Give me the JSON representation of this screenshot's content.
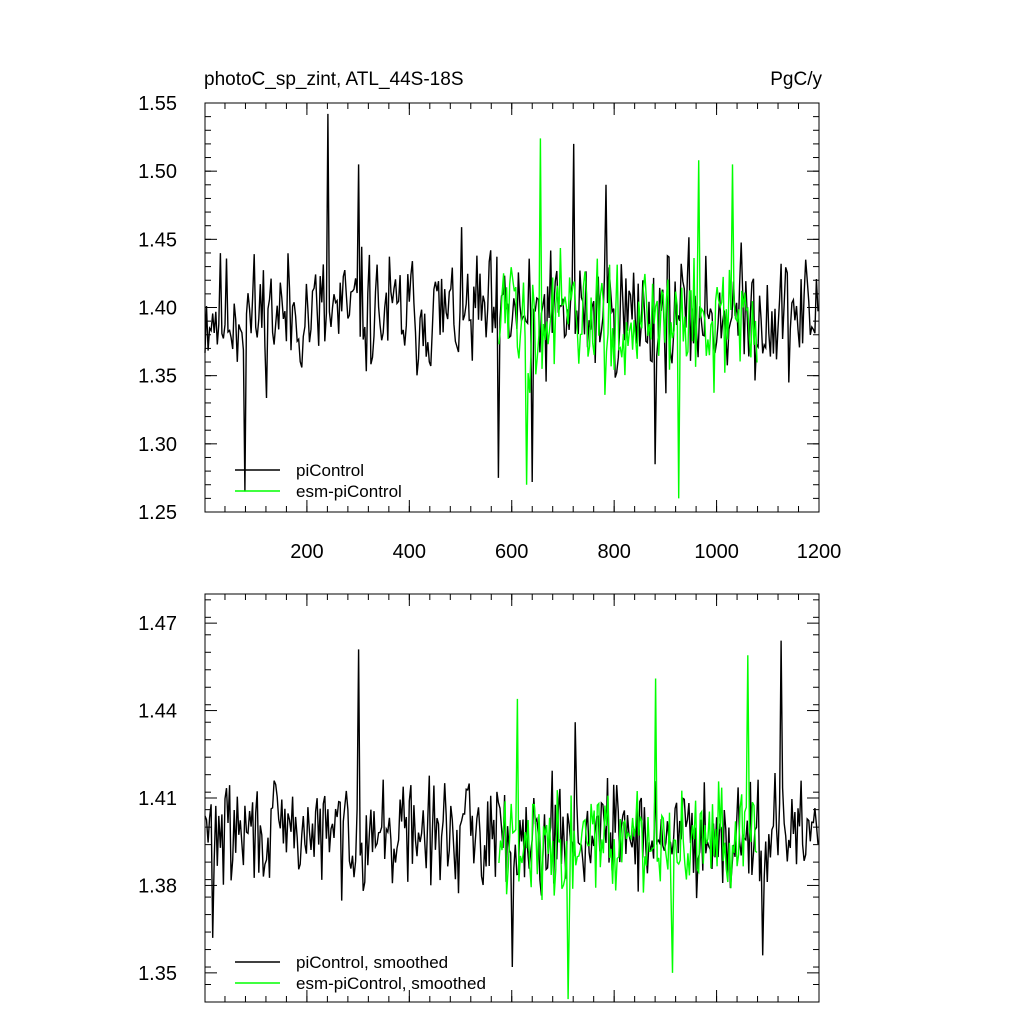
{
  "chart_data": [
    {
      "type": "line",
      "title": "photoC_sp_zint, ATL_44S-18S",
      "units": "PgC/y",
      "xlim": [
        1,
        1200
      ],
      "ylim": [
        1.25,
        1.55
      ],
      "x_ticks": [
        200,
        400,
        600,
        800,
        1000,
        1200
      ],
      "x_tick_labels": [
        "200",
        "400",
        "600",
        "800",
        "1000",
        "1200"
      ],
      "y_ticks": [
        1.25,
        1.3,
        1.35,
        1.4,
        1.45,
        1.5,
        1.55
      ],
      "y_tick_labels": [
        "1.25",
        "1.30",
        "1.35",
        "1.40",
        "1.45",
        "1.50",
        "1.55"
      ],
      "legend": {
        "position": "bottom-left",
        "entries": [
          "piControl",
          "esm-piControl"
        ]
      },
      "series": [
        {
          "name": "piControl",
          "color": "#000000",
          "x_range": [
            1,
            1200
          ],
          "mean": 1.395,
          "approx_range": [
            1.265,
            1.542
          ],
          "peaks": [
            {
              "x": 240,
              "y": 1.542
            },
            {
              "x": 300,
              "y": 1.505
            },
            {
              "x": 720,
              "y": 1.52
            },
            {
              "x": 785,
              "y": 1.49
            }
          ],
          "troughs": [
            {
              "x": 80,
              "y": 1.265
            },
            {
              "x": 575,
              "y": 1.275
            },
            {
              "x": 640,
              "y": 1.272
            },
            {
              "x": 880,
              "y": 1.285
            }
          ]
        },
        {
          "name": "esm-piControl",
          "color": "#00ff00",
          "x_range": [
            575,
            1080
          ],
          "mean": 1.39,
          "approx_range": [
            1.26,
            1.524
          ],
          "peaks": [
            {
              "x": 655,
              "y": 1.524
            },
            {
              "x": 965,
              "y": 1.508
            },
            {
              "x": 1030,
              "y": 1.505
            }
          ],
          "troughs": [
            {
              "x": 630,
              "y": 1.27
            },
            {
              "x": 925,
              "y": 1.26
            }
          ]
        }
      ]
    },
    {
      "type": "line",
      "xlim": [
        1,
        1200
      ],
      "ylim": [
        1.34,
        1.48
      ],
      "x_ticks": [
        200,
        400,
        600,
        800,
        1000,
        1200
      ],
      "y_ticks": [
        1.35,
        1.38,
        1.41,
        1.44,
        1.47
      ],
      "y_tick_labels": [
        "1.35",
        "1.38",
        "1.41",
        "1.44",
        "1.47"
      ],
      "legend": {
        "position": "bottom-left",
        "entries": [
          "piControl, smoothed",
          "esm-piControl, smoothed"
        ]
      },
      "series": [
        {
          "name": "piControl, smoothed",
          "color": "#000000",
          "x_range": [
            1,
            1200
          ],
          "mean": 1.398,
          "approx_range": [
            1.352,
            1.464
          ],
          "peaks": [
            {
              "x": 300,
              "y": 1.461
            },
            {
              "x": 1125,
              "y": 1.464
            },
            {
              "x": 725,
              "y": 1.436
            }
          ],
          "troughs": [
            {
              "x": 15,
              "y": 1.362
            },
            {
              "x": 600,
              "y": 1.352
            },
            {
              "x": 1090,
              "y": 1.356
            }
          ]
        },
        {
          "name": "esm-piControl, smoothed",
          "color": "#00ff00",
          "x_range": [
            575,
            1080
          ],
          "mean": 1.395,
          "approx_range": [
            1.341,
            1.459
          ],
          "peaks": [
            {
              "x": 610,
              "y": 1.444
            },
            {
              "x": 880,
              "y": 1.451
            },
            {
              "x": 1060,
              "y": 1.459
            }
          ],
          "troughs": [
            {
              "x": 710,
              "y": 1.341
            },
            {
              "x": 915,
              "y": 1.35
            }
          ]
        }
      ]
    }
  ]
}
